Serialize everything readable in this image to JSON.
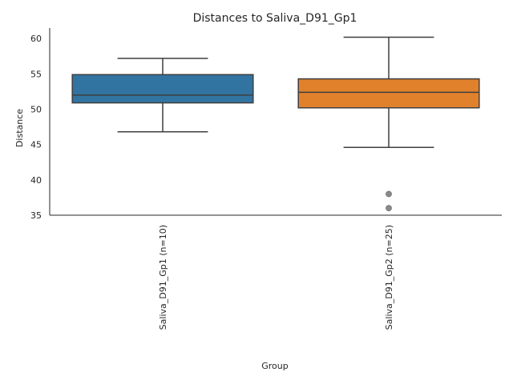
{
  "chart_data": {
    "type": "box",
    "title": "Distances to Saliva_D91_Gp1",
    "xlabel": "Group",
    "ylabel": "Distance",
    "ylim": [
      35,
      61.5
    ],
    "yticks": [
      35,
      40,
      45,
      50,
      55,
      60
    ],
    "grid": false,
    "categories": [
      "Saliva_D91_Gp1 (n=10)",
      "Saliva_D91_Gp2 (n=25)"
    ],
    "boxes": [
      {
        "category": "Saliva_D91_Gp1 (n=10)",
        "color": "#3274a1",
        "whisker_low": 46.8,
        "q1": 50.9,
        "median": 52.0,
        "q3": 54.9,
        "whisker_high": 57.2,
        "outliers": []
      },
      {
        "category": "Saliva_D91_Gp2 (n=25)",
        "color": "#e1812c",
        "whisker_low": 44.6,
        "q1": 50.2,
        "median": 52.4,
        "q3": 54.3,
        "whisker_high": 60.2,
        "outliers": [
          38.0,
          36.0
        ]
      }
    ]
  }
}
